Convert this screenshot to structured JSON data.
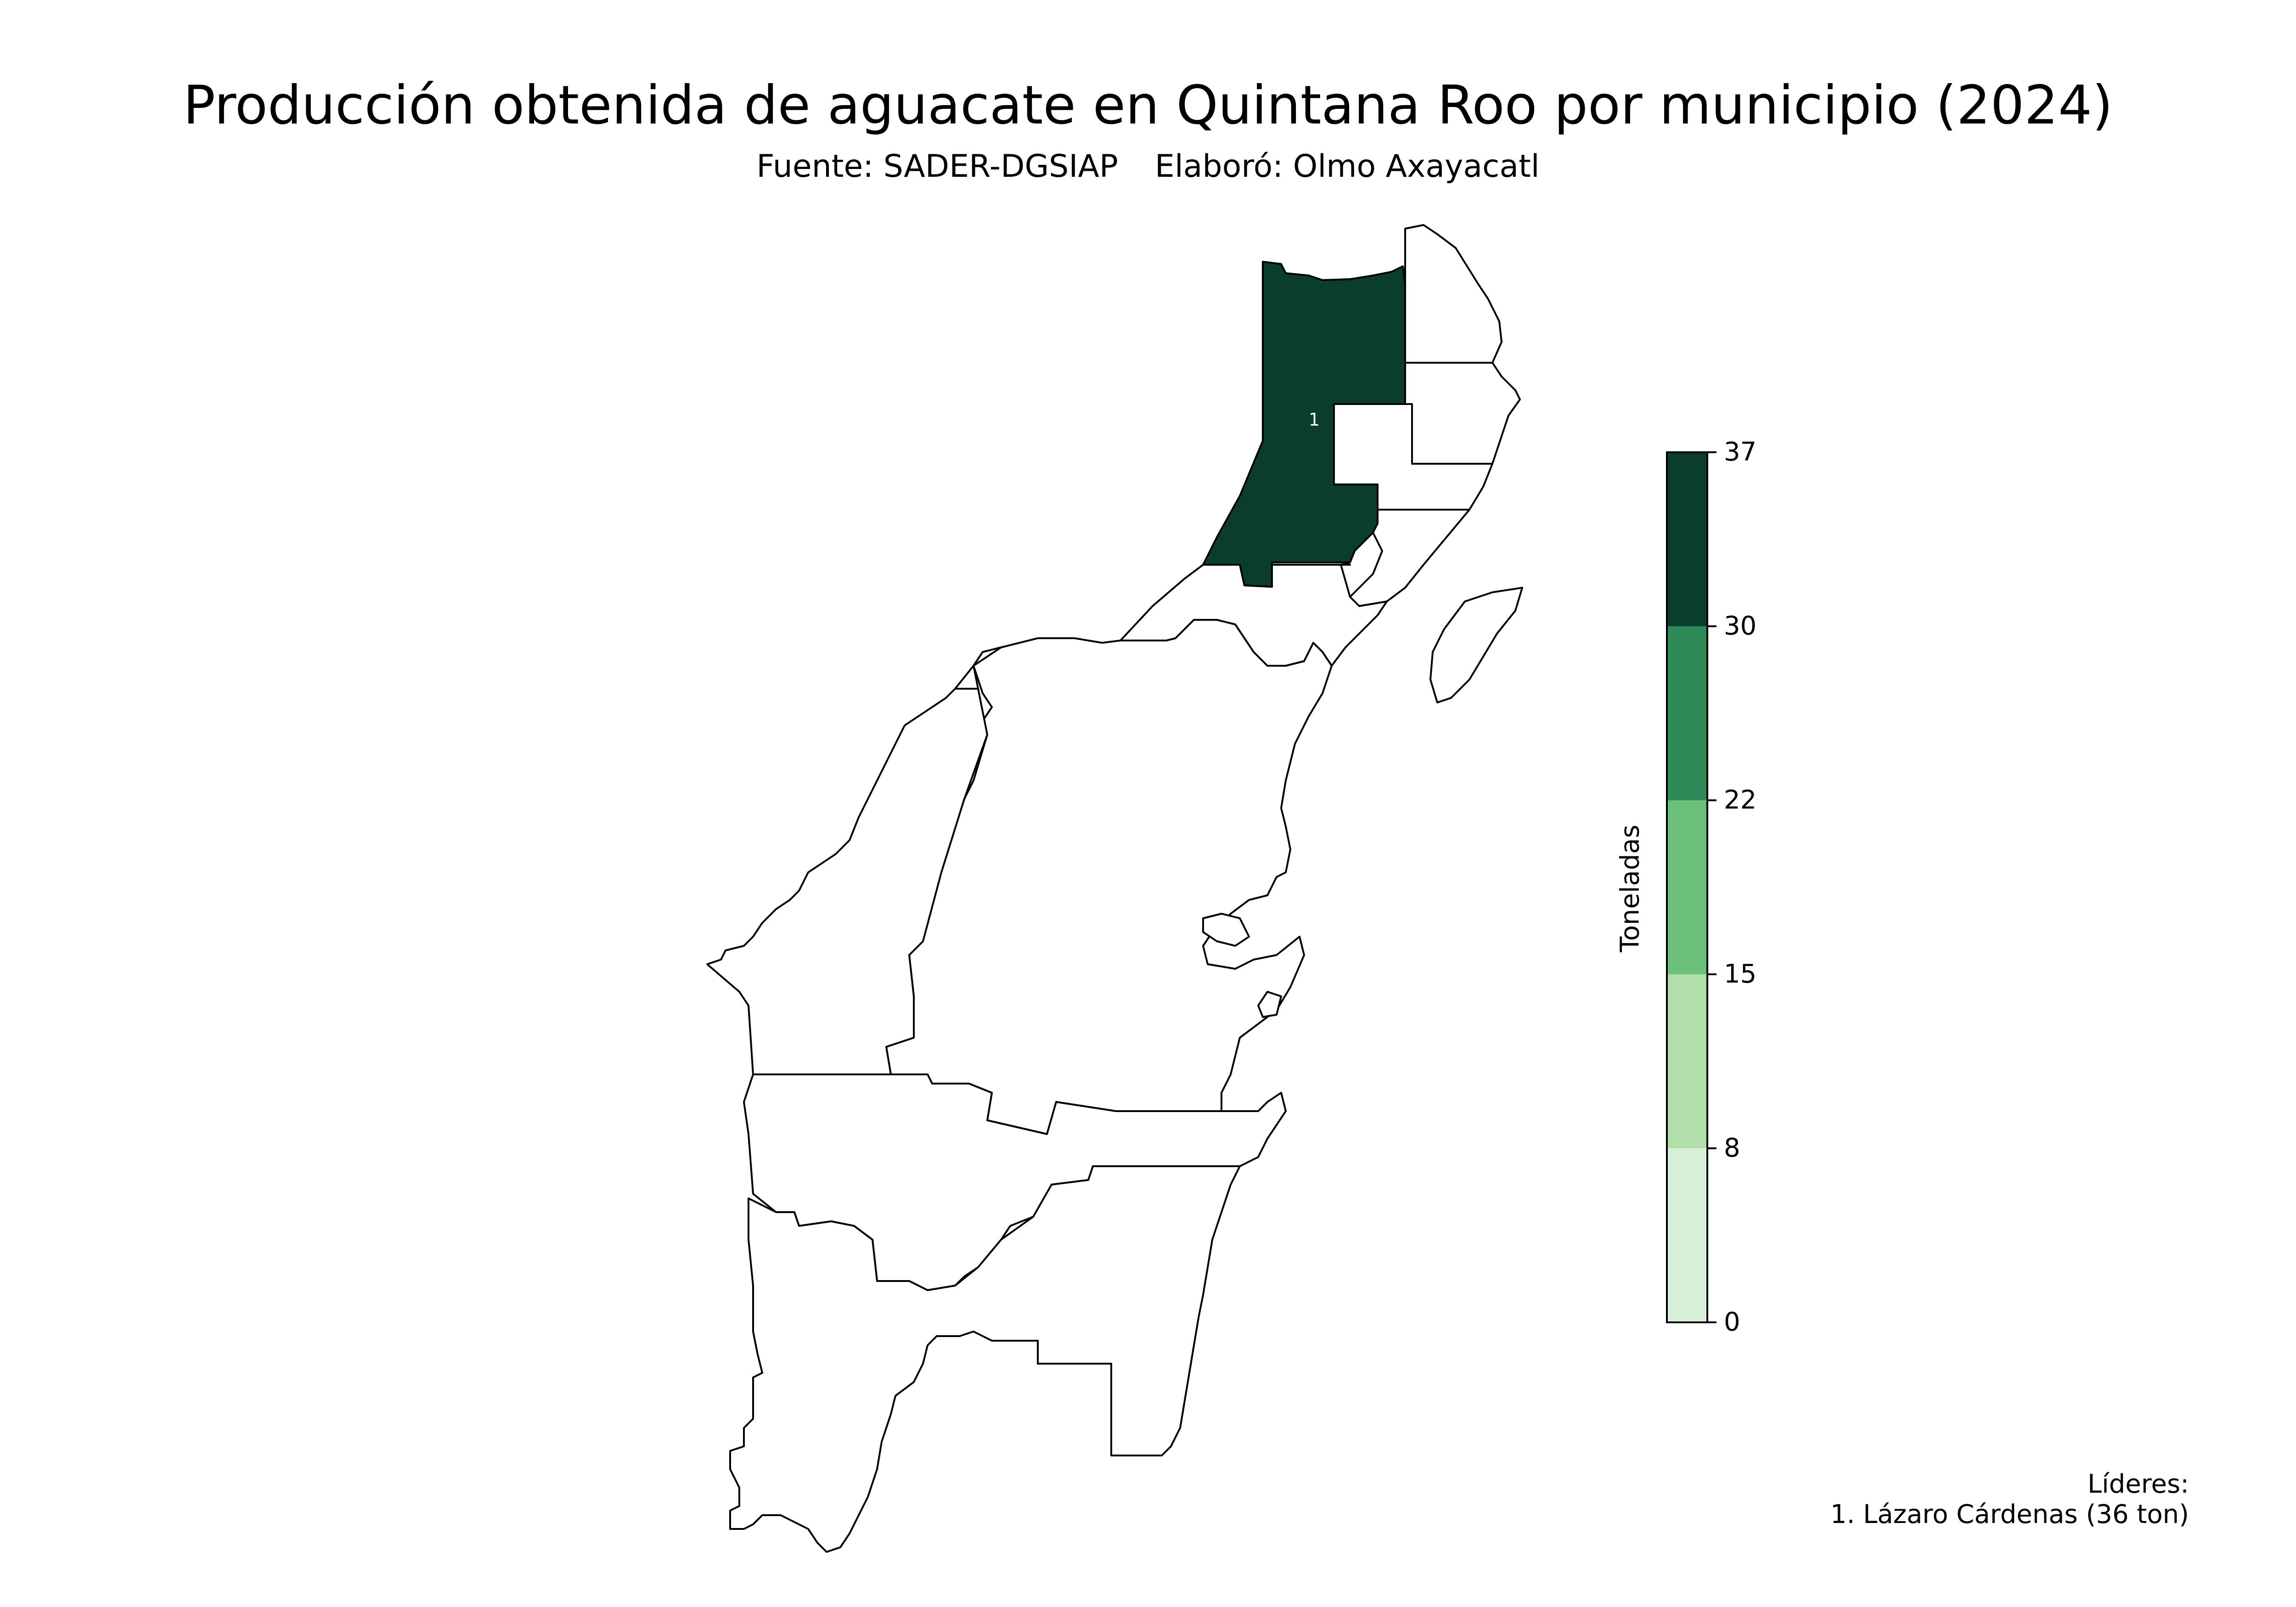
{
  "title": "Producción obtenida de aguacate en Quintana Roo por municipio (2024)",
  "subtitle": {
    "source": "Fuente: SADER-DGSIAP",
    "author": "Elaboró: Olmo Axayacatl"
  },
  "map": {
    "units_label": "Toneladas",
    "ticks": [
      "0",
      "8",
      "15",
      "22",
      "30",
      "37"
    ],
    "colors": [
      "#d8f0d8",
      "#b0dfaa",
      "#6bc07a",
      "#2e8b57",
      "#0b3d2e"
    ],
    "highlight": {
      "rank_label": "1",
      "name": "Lázaro Cárdenas",
      "value": 36,
      "color": "#0b3d2e"
    }
  },
  "leaders": {
    "heading": "Líderes:",
    "items": [
      "1. Lázaro Cárdenas (36 ton)"
    ]
  }
}
